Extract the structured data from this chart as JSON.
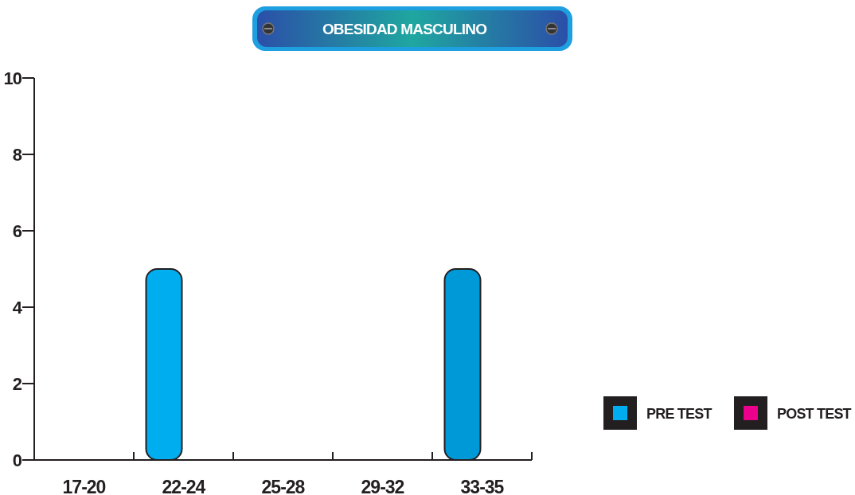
{
  "chart_data": {
    "type": "bar",
    "title": "OBESIDAD MASCULINO",
    "categories": [
      "17-20",
      "22-24",
      "25-28",
      "29-32",
      "33-35"
    ],
    "series": [
      {
        "name": "PRE TEST",
        "color": "#00aeef",
        "colors": [
          "#00aeef",
          "#00aeef",
          "#00aeef",
          "#00aeef",
          "#0099d8"
        ],
        "values": [
          0,
          5,
          0,
          0,
          5
        ]
      },
      {
        "name": "POST TEST",
        "color": "#ec008c",
        "values": [
          0,
          0,
          0,
          0,
          0
        ]
      }
    ],
    "ylim": [
      0,
      10
    ],
    "yticks": [
      0,
      2,
      4,
      6,
      8,
      10
    ],
    "grid": false,
    "legend": "bottom right"
  }
}
